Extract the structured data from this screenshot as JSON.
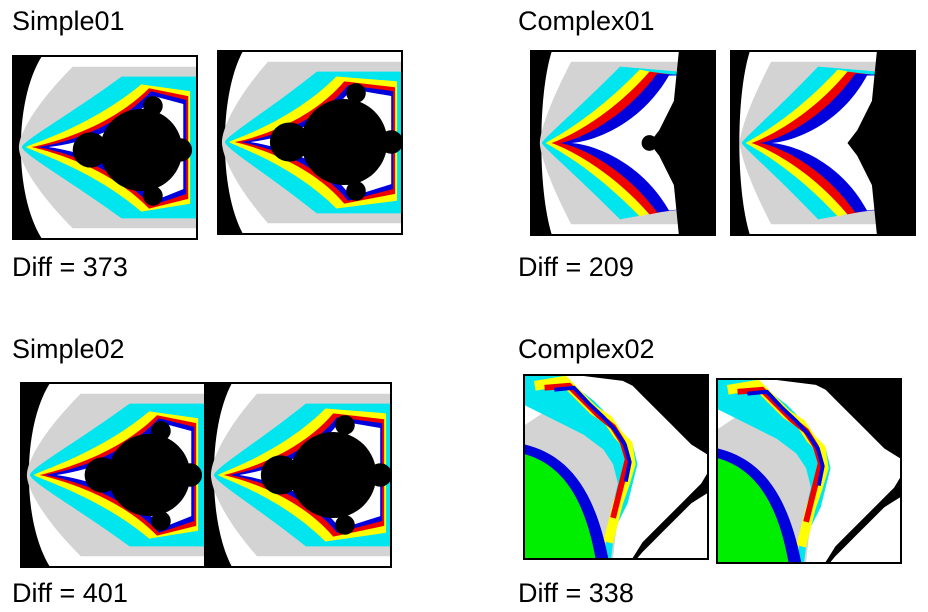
{
  "panels": [
    {
      "title": "Simple01",
      "diff": "Diff = 373"
    },
    {
      "title": "Complex01",
      "diff": "Diff = 209"
    },
    {
      "title": "Simple02",
      "diff": "Diff = 401"
    },
    {
      "title": "Complex02",
      "diff": "Diff = 338"
    }
  ],
  "palette": {
    "interior": "#000000",
    "level1": "#ffffff",
    "level2": "#d3d3d3",
    "level3": "#00e5ee",
    "level4": "#ffff00",
    "level5": "#00cc33",
    "level6": "#ee0000",
    "level7": "#0000dd",
    "outer_green": "#00ee00"
  }
}
